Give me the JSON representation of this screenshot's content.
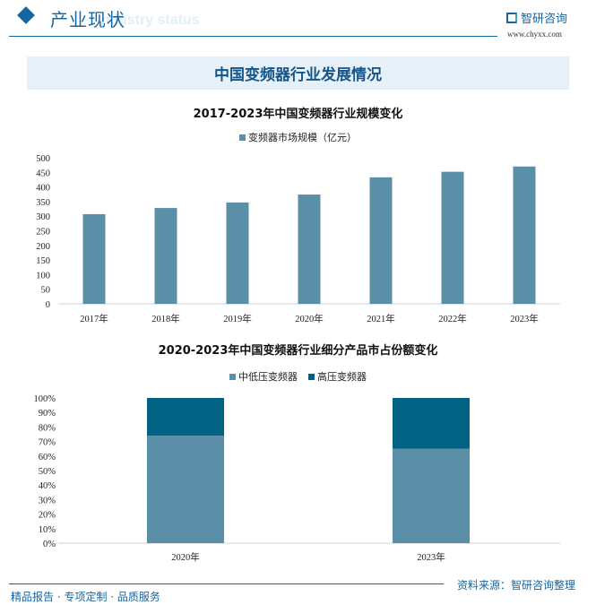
{
  "header": {
    "title": "产业现状",
    "subtitle": "Industry status",
    "brand": "智研咨询",
    "site": "www.chyxx.com"
  },
  "banner": "中国变频器行业发展情况",
  "footer": {
    "left": "精品报告 · 专项定制 · 品质服务",
    "right": "资料来源：智研咨询整理"
  },
  "colors": {
    "primary": "#1466a0",
    "series_light": "#5b8fa8",
    "series_dark": "#016284"
  },
  "chart_data": [
    {
      "type": "bar",
      "title": "2017-2023年中国变频器行业规模变化",
      "categories": [
        "2017年",
        "2018年",
        "2019年",
        "2020年",
        "2021年",
        "2022年",
        "2023年"
      ],
      "series": [
        {
          "name": "变频器市场规模（亿元）",
          "values": [
            307,
            328,
            347,
            374,
            433,
            452,
            470
          ]
        }
      ],
      "ylim": [
        0,
        500
      ],
      "yticks": [
        "0",
        "50",
        "100",
        "150",
        "200",
        "250",
        "300",
        "350",
        "400",
        "450",
        "500"
      ],
      "legend": "top"
    },
    {
      "type": "bar",
      "stacked": true,
      "title": "2020-2023年中国变频器行业细分产品市占份额变化",
      "categories": [
        "2020年",
        "2023年"
      ],
      "series": [
        {
          "name": "中低压变频器",
          "values": [
            74,
            65
          ]
        },
        {
          "name": "高压变频器",
          "values": [
            26,
            35
          ]
        }
      ],
      "ylim": [
        0,
        100
      ],
      "yticks": [
        "0%",
        "10%",
        "20%",
        "30%",
        "40%",
        "50%",
        "60%",
        "70%",
        "80%",
        "90%",
        "100%"
      ],
      "legend": "top"
    }
  ]
}
